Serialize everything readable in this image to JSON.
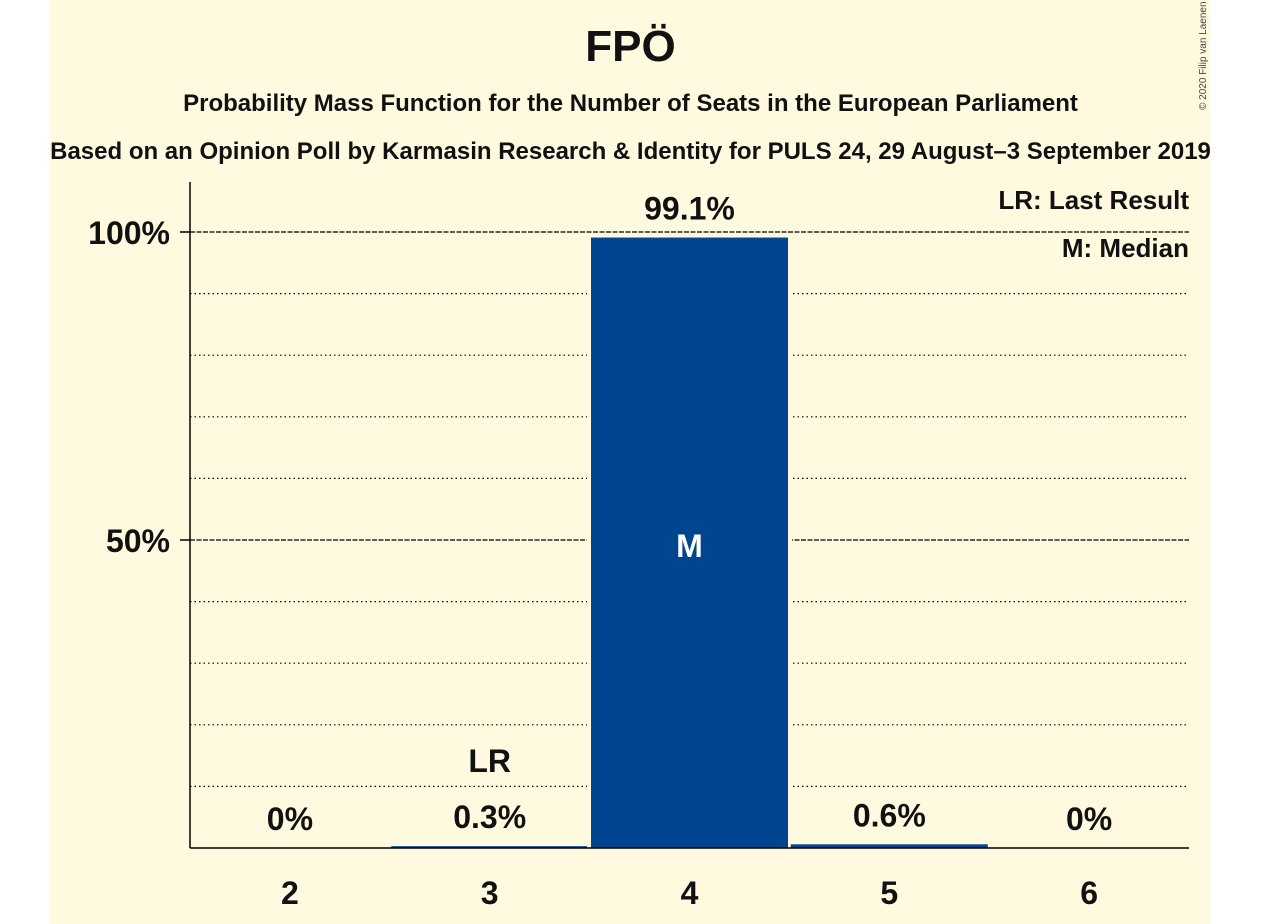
{
  "header": {
    "title": "FPÖ",
    "subtitle": "Probability Mass Function for the Number of Seats in the European Parliament",
    "subtitle2": "Based on an Opinion Poll by Karmasin Research & Identity for PULS 24, 29 August–3 September 2019",
    "copyright": "© 2020 Filip van Laenen"
  },
  "legend": {
    "lr": "LR: Last Result",
    "m": "M: Median"
  },
  "colors": {
    "background": "#FFF9E0",
    "bar": "#00458F"
  },
  "chart_data": {
    "type": "bar",
    "title": "FPÖ",
    "categories": [
      "2",
      "3",
      "4",
      "5",
      "6"
    ],
    "values": [
      0,
      0.3,
      99.1,
      0.6,
      0
    ],
    "value_labels": [
      "0%",
      "0.3%",
      "99.1%",
      "0.6%",
      "0%"
    ],
    "ylim": [
      0,
      100
    ],
    "ytick_labels": [
      {
        "value": 50,
        "label": "50%"
      },
      {
        "value": 100,
        "label": "100%"
      }
    ],
    "minor_grid_step": 10,
    "last_result": {
      "category": "3",
      "label": "LR"
    },
    "median": {
      "category": "4",
      "label": "M"
    },
    "legend_position": "top-right"
  }
}
